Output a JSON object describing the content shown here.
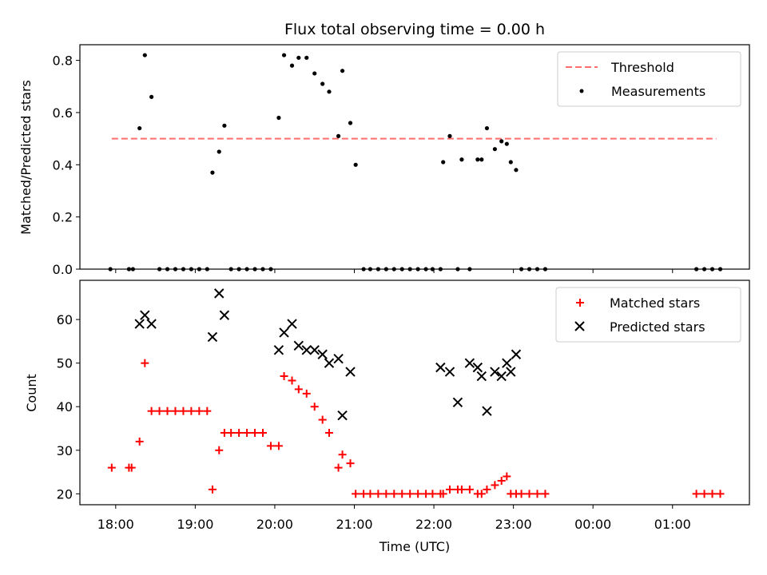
{
  "chart_data": [
    {
      "type": "scatter",
      "title": "Flux total observing time = 0.00 h",
      "xlabel": "",
      "ylabel": "Matched/Predicted stars",
      "ylim": [
        0,
        0.86
      ],
      "yticks": [
        "0.0",
        "0.2",
        "0.4",
        "0.6",
        "0.8"
      ],
      "threshold": {
        "name": "Threshold",
        "value": 0.5,
        "x_start": "17:57",
        "x_end": "01:33",
        "color": "#ff6e6e"
      },
      "series": [
        {
          "name": "Measurements",
          "color": "#000000",
          "x": [
            "17:56",
            "18:10",
            "18:13",
            "18:18",
            "18:22",
            "18:27",
            "18:33",
            "18:39",
            "18:45",
            "18:51",
            "18:57",
            "19:03",
            "19:09",
            "19:13",
            "19:18",
            "19:22",
            "19:27",
            "19:33",
            "19:39",
            "19:45",
            "19:51",
            "19:57",
            "20:03",
            "20:07",
            "20:13",
            "20:18",
            "20:24",
            "20:30",
            "20:36",
            "20:41",
            "20:48",
            "20:51",
            "20:57",
            "21:01",
            "21:07",
            "21:12",
            "21:18",
            "21:24",
            "21:30",
            "21:36",
            "21:42",
            "21:48",
            "21:54",
            "21:59",
            "22:05",
            "22:07",
            "22:12",
            "22:18",
            "22:21",
            "22:27",
            "22:33",
            "22:36",
            "22:40",
            "22:46",
            "22:51",
            "22:55",
            "22:58",
            "23:02",
            "23:06",
            "23:12",
            "23:18",
            "23:24",
            "01:18",
            "01:24",
            "01:30",
            "01:36"
          ],
          "y": [
            0.0,
            0.0,
            0.0,
            0.54,
            0.82,
            0.66,
            0.0,
            0.0,
            0.0,
            0.0,
            0.0,
            0.0,
            0.0,
            0.37,
            0.45,
            0.55,
            0.0,
            0.0,
            0.0,
            0.0,
            0.0,
            0.0,
            0.58,
            0.82,
            0.78,
            0.81,
            0.81,
            0.75,
            0.71,
            0.68,
            0.51,
            0.76,
            0.56,
            0.4,
            0.0,
            0.0,
            0.0,
            0.0,
            0.0,
            0.0,
            0.0,
            0.0,
            0.0,
            0.0,
            0.0,
            0.41,
            0.51,
            0.0,
            0.42,
            0.0,
            0.42,
            0.42,
            0.54,
            0.46,
            0.49,
            0.48,
            0.41,
            0.38,
            0.0,
            0.0,
            0.0,
            0.0,
            0.0,
            0.0,
            0.0,
            0.0
          ]
        }
      ],
      "legend": {
        "placement": "top-right",
        "entries": [
          "Threshold",
          "Measurements"
        ]
      }
    },
    {
      "type": "scatter",
      "title": "",
      "xlabel": "Time (UTC)",
      "ylabel": "Count",
      "ylim": [
        17.5,
        69
      ],
      "yticks": [
        "20",
        "30",
        "40",
        "50",
        "60"
      ],
      "xticks": [
        "18:00",
        "19:00",
        "20:00",
        "21:00",
        "22:00",
        "23:00",
        "00:00",
        "01:00"
      ],
      "xlim": [
        "17:33",
        "01:58"
      ],
      "series": [
        {
          "name": "Matched stars",
          "marker": "+",
          "color": "#ff0000",
          "x": [
            "17:57",
            "18:10",
            "18:12",
            "18:18",
            "18:22",
            "18:27",
            "18:33",
            "18:39",
            "18:45",
            "18:51",
            "18:57",
            "19:03",
            "19:09",
            "19:13",
            "19:18",
            "19:22",
            "19:27",
            "19:33",
            "19:39",
            "19:45",
            "19:51",
            "19:57",
            "20:03",
            "20:07",
            "20:13",
            "20:18",
            "20:24",
            "20:30",
            "20:36",
            "20:41",
            "20:48",
            "20:51",
            "20:57",
            "21:01",
            "21:07",
            "21:12",
            "21:18",
            "21:24",
            "21:30",
            "21:36",
            "21:42",
            "21:48",
            "21:54",
            "21:59",
            "22:05",
            "22:07",
            "22:12",
            "22:18",
            "22:21",
            "22:27",
            "22:33",
            "22:36",
            "22:40",
            "22:46",
            "22:51",
            "22:55",
            "22:58",
            "23:02",
            "23:06",
            "23:12",
            "23:18",
            "23:24",
            "01:18",
            "01:24",
            "01:30",
            "01:36"
          ],
          "y": [
            26,
            26,
            26,
            32,
            50,
            39,
            39,
            39,
            39,
            39,
            39,
            39,
            39,
            21,
            30,
            34,
            34,
            34,
            34,
            34,
            34,
            31,
            31,
            47,
            46,
            44,
            43,
            40,
            37,
            34,
            26,
            29,
            27,
            20,
            20,
            20,
            20,
            20,
            20,
            20,
            20,
            20,
            20,
            20,
            20,
            20,
            21,
            21,
            21,
            21,
            20,
            20,
            21,
            22,
            23,
            24,
            20,
            20,
            20,
            20,
            20,
            20,
            20,
            20,
            20,
            20
          ]
        },
        {
          "name": "Predicted stars",
          "marker": "x",
          "color": "#000000",
          "x": [
            "18:18",
            "18:22",
            "18:27",
            "19:13",
            "19:18",
            "19:22",
            "20:03",
            "20:07",
            "20:13",
            "20:18",
            "20:24",
            "20:30",
            "20:36",
            "20:41",
            "20:48",
            "20:51",
            "20:57",
            "22:05",
            "22:12",
            "22:18",
            "22:27",
            "22:33",
            "22:36",
            "22:40",
            "22:46",
            "22:51",
            "22:55",
            "22:58",
            "23:02"
          ],
          "y": [
            59,
            61,
            59,
            56,
            66,
            61,
            53,
            57,
            59,
            54,
            53,
            53,
            52,
            50,
            51,
            38,
            48,
            49,
            48,
            41,
            50,
            49,
            47,
            39,
            48,
            47,
            50,
            48,
            52
          ]
        }
      ],
      "legend": {
        "placement": "top-right",
        "entries": [
          "Matched stars",
          "Predicted stars"
        ]
      }
    }
  ]
}
